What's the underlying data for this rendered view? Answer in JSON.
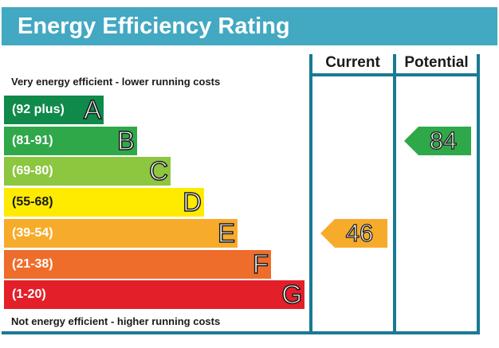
{
  "title": "Energy Efficiency Rating",
  "top_label": "Very energy efficient - lower running costs",
  "bottom_label": "Not energy efficient - higher running costs",
  "columns": {
    "current": "Current",
    "potential": "Potential"
  },
  "colors": {
    "title_bar": "#43a8c2",
    "frame": "#1a7a94",
    "A": "#0f8a4a",
    "B": "#2fa84a",
    "C": "#8dc63f",
    "D": "#ffeb00",
    "E": "#f7ab2b",
    "F": "#ee6d2b",
    "G": "#e3202a"
  },
  "chart_data": {
    "type": "bar",
    "title": "Energy Efficiency Rating",
    "bands": [
      {
        "range": "(92 plus)",
        "letter": "A",
        "min": 92,
        "max": 100
      },
      {
        "range": "(81-91)",
        "letter": "B",
        "min": 81,
        "max": 91
      },
      {
        "range": "(69-80)",
        "letter": "C",
        "min": 69,
        "max": 80
      },
      {
        "range": "(55-68)",
        "letter": "D",
        "min": 55,
        "max": 68
      },
      {
        "range": "(39-54)",
        "letter": "E",
        "min": 39,
        "max": 54
      },
      {
        "range": "(21-38)",
        "letter": "F",
        "min": 21,
        "max": 38
      },
      {
        "range": "(1-20)",
        "letter": "G",
        "min": 1,
        "max": 20
      }
    ],
    "series": [
      {
        "name": "Current",
        "value": 46,
        "band": "E"
      },
      {
        "name": "Potential",
        "value": 84,
        "band": "B"
      }
    ]
  }
}
